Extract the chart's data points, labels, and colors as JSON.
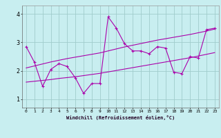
{
  "xlabel": "Windchill (Refroidissement éolien,°C)",
  "background_color": "#c8eef0",
  "grid_color": "#a0cccc",
  "line_color": "#aa00aa",
  "x_values": [
    0,
    1,
    2,
    3,
    4,
    5,
    6,
    7,
    8,
    9,
    10,
    11,
    12,
    13,
    14,
    15,
    16,
    17,
    18,
    19,
    20,
    21,
    22,
    23
  ],
  "main_values": [
    2.85,
    2.3,
    1.45,
    2.05,
    2.25,
    2.15,
    1.75,
    1.2,
    1.55,
    1.55,
    3.9,
    3.5,
    2.95,
    2.7,
    2.7,
    2.6,
    2.85,
    2.8,
    1.95,
    1.9,
    2.5,
    2.45,
    3.45,
    3.5
  ],
  "trend_upper": [
    2.1,
    2.17,
    2.24,
    2.31,
    2.37,
    2.43,
    2.48,
    2.53,
    2.58,
    2.63,
    2.7,
    2.77,
    2.84,
    2.9,
    2.96,
    3.02,
    3.08,
    3.13,
    3.18,
    3.23,
    3.28,
    3.34,
    3.4,
    3.47
  ],
  "trend_lower": [
    1.6,
    1.63,
    1.66,
    1.69,
    1.73,
    1.76,
    1.79,
    1.83,
    1.87,
    1.91,
    1.96,
    2.01,
    2.06,
    2.11,
    2.16,
    2.21,
    2.26,
    2.31,
    2.36,
    2.41,
    2.46,
    2.52,
    2.58,
    2.64
  ],
  "ylim": [
    0.7,
    4.3
  ],
  "yticks": [
    1,
    2,
    3,
    4
  ],
  "xlim": [
    -0.5,
    23.5
  ],
  "figwidth": 3.2,
  "figheight": 2.0,
  "dpi": 100
}
